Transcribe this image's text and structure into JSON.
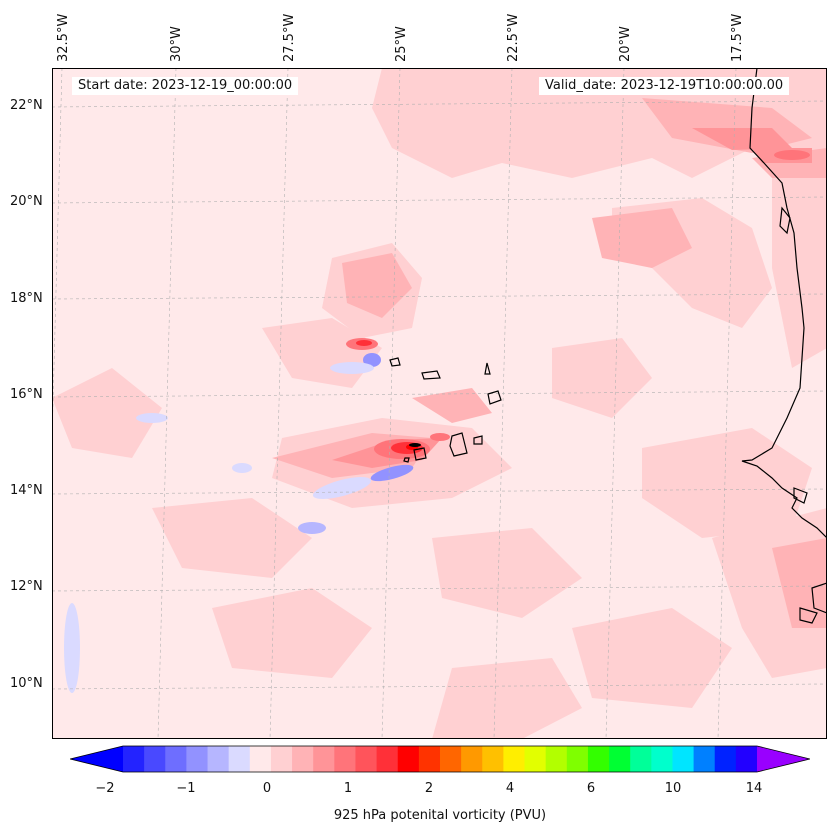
{
  "map": {
    "start_date_label": "Start date: 2023-12-19_00:00:00",
    "valid_date_label": "Valid_date: 2023-12-19T10:00:00.00",
    "lon_labels": [
      "32.5°W",
      "30°W",
      "27.5°W",
      "25°W",
      "22.5°W",
      "20°W",
      "17.5°W"
    ],
    "lat_labels": [
      "22°N",
      "20°N",
      "18°N",
      "16°N",
      "14°N",
      "12°N",
      "10°N"
    ],
    "lon_range": [
      -33,
      -15.7
    ],
    "lat_range": [
      8.9,
      22.8
    ],
    "field": "925 hPa potenital vorticity",
    "units": "PVU"
  },
  "colorbar": {
    "label": "925 hPa potenital vorticity (PVU)",
    "tick_labels": [
      "−2",
      "−1",
      "0",
      "1",
      "2",
      "4",
      "6",
      "10",
      "14"
    ],
    "colors": [
      "#0000ff",
      "#2323ff",
      "#4949ff",
      "#6e6eff",
      "#9292ff",
      "#b6b6ff",
      "#dadaff",
      "#ffe9ea",
      "#ffd0d2",
      "#ffb3b6",
      "#ff9498",
      "#ff747a",
      "#ff545b",
      "#ff3038",
      "#ff0000",
      "#ff3300",
      "#ff6600",
      "#ff9900",
      "#ffc000",
      "#ffee00",
      "#e2ff00",
      "#b2ff00",
      "#7fff00",
      "#33ff00",
      "#00ff33",
      "#00ff99",
      "#00ffcc",
      "#00e5ff",
      "#0080ff",
      "#0022ff",
      "#2200ff",
      "#9900ff"
    ]
  }
}
